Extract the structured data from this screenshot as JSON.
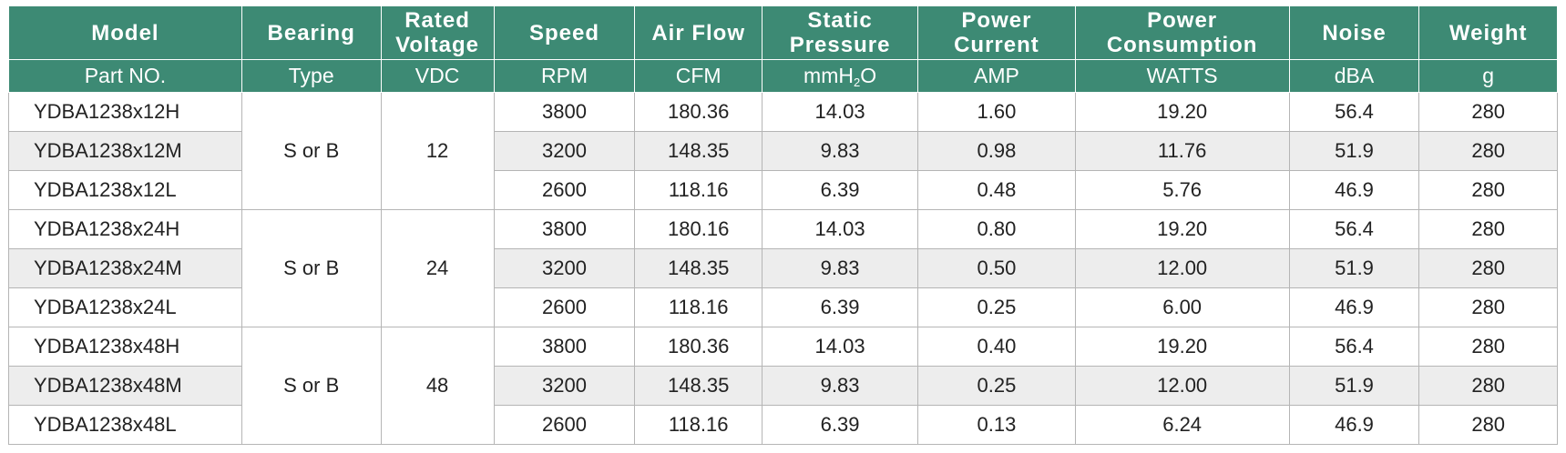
{
  "header": {
    "titles": [
      "Model",
      "Bearing",
      "Rated Voltage",
      "Speed",
      "Air Flow",
      "Static Pressure",
      "Power Current",
      "Power Consumption",
      "Noise",
      "Weight"
    ],
    "units": [
      "Part NO.",
      "Type",
      "VDC",
      "RPM",
      "CFM",
      "mmH",
      "AMP",
      "WATTS",
      "dBA",
      "g"
    ],
    "pressure_unit_sub": "2",
    "pressure_unit_tail": "O"
  },
  "groups": [
    {
      "bearing": "S or B",
      "voltage": "12",
      "rows": [
        {
          "model": "YDBA1238x12H",
          "speed": "3800",
          "airflow": "180.36",
          "pressure": "14.03",
          "current": "1.60",
          "power": "19.20",
          "noise": "56.4",
          "weight": "280"
        },
        {
          "model": "YDBA1238x12M",
          "speed": "3200",
          "airflow": "148.35",
          "pressure": "9.83",
          "current": "0.98",
          "power": "11.76",
          "noise": "51.9",
          "weight": "280"
        },
        {
          "model": "YDBA1238x12L",
          "speed": "2600",
          "airflow": "118.16",
          "pressure": "6.39",
          "current": "0.48",
          "power": "5.76",
          "noise": "46.9",
          "weight": "280"
        }
      ]
    },
    {
      "bearing": "S or B",
      "voltage": "24",
      "rows": [
        {
          "model": "YDBA1238x24H",
          "speed": "3800",
          "airflow": "180.16",
          "pressure": "14.03",
          "current": "0.80",
          "power": "19.20",
          "noise": "56.4",
          "weight": "280"
        },
        {
          "model": "YDBA1238x24M",
          "speed": "3200",
          "airflow": "148.35",
          "pressure": "9.83",
          "current": "0.50",
          "power": "12.00",
          "noise": "51.9",
          "weight": "280"
        },
        {
          "model": "YDBA1238x24L",
          "speed": "2600",
          "airflow": "118.16",
          "pressure": "6.39",
          "current": "0.25",
          "power": "6.00",
          "noise": "46.9",
          "weight": "280"
        }
      ]
    },
    {
      "bearing": "S or B",
      "voltage": "48",
      "rows": [
        {
          "model": "YDBA1238x48H",
          "speed": "3800",
          "airflow": "180.36",
          "pressure": "14.03",
          "current": "0.40",
          "power": "19.20",
          "noise": "56.4",
          "weight": "280"
        },
        {
          "model": "YDBA1238x48M",
          "speed": "3200",
          "airflow": "148.35",
          "pressure": "9.83",
          "current": "0.25",
          "power": "12.00",
          "noise": "51.9",
          "weight": "280"
        },
        {
          "model": "YDBA1238x48L",
          "speed": "2600",
          "airflow": "118.16",
          "pressure": "6.39",
          "current": "0.13",
          "power": "6.24",
          "noise": "46.9",
          "weight": "280"
        }
      ]
    }
  ],
  "colors": {
    "header_bg": "#3d8a74",
    "header_text": "#ffffff",
    "alt_row_bg": "#ededed",
    "grid": "#b5b5b5"
  }
}
